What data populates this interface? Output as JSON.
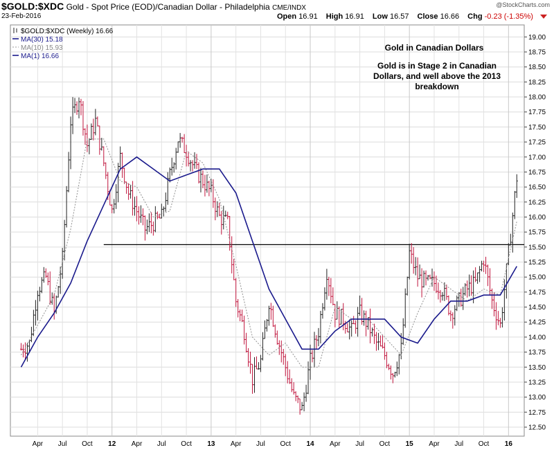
{
  "header": {
    "symbol": "$GOLD:$XDC",
    "description": "Gold - Spot Price (EOD)/Canadian Dollar - Philadelphia",
    "exchange": "CME/INDX",
    "date": "23-Feb-2016",
    "brand": "@StockCharts.com",
    "open_label": "Open",
    "open": "16.91",
    "high_label": "High",
    "high": "16.91",
    "low_label": "Low",
    "low": "16.57",
    "close_label": "Close",
    "close": "16.66",
    "chg_label": "Chg",
    "chg": "-0.23 (-1.35%)"
  },
  "legend": [
    {
      "label": "$GOLD:$XDC (Weekly) 16.66",
      "style": "bars",
      "color": "#222222"
    },
    {
      "label": "MA(30) 15.18",
      "style": "solid",
      "color": "#1a1a8c"
    },
    {
      "label": "MA(10) 15.93",
      "style": "dotted",
      "color": "#999999"
    },
    {
      "label": "MA(1) 16.66",
      "style": "solid",
      "color": "#1a1a8c"
    }
  ],
  "annotation": {
    "line1": "Gold in Canadian Dollars",
    "line2": "Gold is in Stage 2 in Canadian",
    "line3": "Dollars, and well above the 2013",
    "line4": "breakdown"
  },
  "chart_data": {
    "type": "line",
    "title": "Gold in Canadian Dollars",
    "x_axis_labels": [
      "Apr",
      "Jul",
      "Oct",
      "12",
      "Apr",
      "Jul",
      "Oct",
      "13",
      "Apr",
      "Jul",
      "Oct",
      "14",
      "Apr",
      "Jul",
      "Oct",
      "15",
      "Apr",
      "Jul",
      "Oct",
      "16"
    ],
    "year_labels": [
      "12",
      "13",
      "14",
      "15",
      "16"
    ],
    "y_tick_labels": [
      "12.50",
      "12.75",
      "13.00",
      "13.25",
      "13.50",
      "13.75",
      "14.00",
      "14.25",
      "14.50",
      "14.75",
      "15.00",
      "15.25",
      "15.50",
      "15.75",
      "16.00",
      "16.25",
      "16.50",
      "16.75",
      "17.00",
      "17.25",
      "17.50",
      "17.75",
      "18.00",
      "18.25",
      "18.50",
      "18.75",
      "19.00"
    ],
    "ylim": [
      12.35,
      19.2
    ],
    "date_range": [
      "2011-02",
      "2016-02"
    ],
    "grid": true,
    "legend_position": "top-left",
    "colors": {
      "up": "#222222",
      "down": "#c0143c",
      "ma30": "#1a1a8c",
      "ma10": "#999999",
      "level": "#000000"
    },
    "horizontal_level": {
      "y": 15.54,
      "from": "2011-12",
      "to": "2016-02"
    },
    "series": [
      {
        "name": "MA(1)",
        "x": [
          "2011-02",
          "2011-03",
          "2011-04",
          "2011-05",
          "2011-06",
          "2011-07",
          "2011-08",
          "2011-09",
          "2011-10",
          "2011-11",
          "2011-12",
          "2012-01",
          "2012-02",
          "2012-03",
          "2012-04",
          "2012-05",
          "2012-06",
          "2012-07",
          "2012-08",
          "2012-09",
          "2012-10",
          "2012-11",
          "2012-12",
          "2013-01",
          "2013-02",
          "2013-03",
          "2013-04",
          "2013-05",
          "2013-06",
          "2013-07",
          "2013-08",
          "2013-09",
          "2013-10",
          "2013-11",
          "2013-12",
          "2014-01",
          "2014-02",
          "2014-03",
          "2014-04",
          "2014-05",
          "2014-06",
          "2014-07",
          "2014-08",
          "2014-09",
          "2014-10",
          "2014-11",
          "2014-12",
          "2015-01",
          "2015-02",
          "2015-03",
          "2015-04",
          "2015-05",
          "2015-06",
          "2015-07",
          "2015-08",
          "2015-09",
          "2015-10",
          "2015-11",
          "2015-12",
          "2016-01",
          "2016-02"
        ],
        "values": [
          13.8,
          13.9,
          14.8,
          15.0,
          14.4,
          15.3,
          17.6,
          18.0,
          17.2,
          17.6,
          16.9,
          16.1,
          17.0,
          16.4,
          16.1,
          15.8,
          15.9,
          16.0,
          16.7,
          17.3,
          17.1,
          16.8,
          16.6,
          16.4,
          16.0,
          15.9,
          14.6,
          14.1,
          13.3,
          13.6,
          14.6,
          14.0,
          13.5,
          13.0,
          12.8,
          13.6,
          14.1,
          15.1,
          14.4,
          14.3,
          14.1,
          14.4,
          14.2,
          13.9,
          13.7,
          13.4,
          13.8,
          15.4,
          15.0,
          14.9,
          14.9,
          14.8,
          14.4,
          14.6,
          14.8,
          14.9,
          15.3,
          14.6,
          14.2,
          15.4,
          16.66
        ]
      },
      {
        "name": "MA(10)",
        "x": [
          "2011-02",
          "2011-04",
          "2011-06",
          "2011-08",
          "2011-10",
          "2011-12",
          "2012-02",
          "2012-04",
          "2012-06",
          "2012-08",
          "2012-10",
          "2012-12",
          "2013-02",
          "2013-04",
          "2013-06",
          "2013-08",
          "2013-10",
          "2013-12",
          "2014-02",
          "2014-04",
          "2014-06",
          "2014-08",
          "2014-10",
          "2014-12",
          "2015-02",
          "2015-04",
          "2015-06",
          "2015-08",
          "2015-10",
          "2015-12",
          "2016-02"
        ],
        "values": [
          13.7,
          14.2,
          14.7,
          15.8,
          17.3,
          17.3,
          16.6,
          16.5,
          16.0,
          16.1,
          17.1,
          16.9,
          16.3,
          15.2,
          14.0,
          13.7,
          13.9,
          13.5,
          13.5,
          14.5,
          14.3,
          14.3,
          14.0,
          13.7,
          14.4,
          15.0,
          14.8,
          14.6,
          14.8,
          14.7,
          15.93
        ]
      },
      {
        "name": "MA(30)",
        "x": [
          "2011-02",
          "2011-04",
          "2011-06",
          "2011-08",
          "2011-10",
          "2011-12",
          "2012-02",
          "2012-04",
          "2012-06",
          "2012-08",
          "2012-10",
          "2012-12",
          "2013-02",
          "2013-04",
          "2013-06",
          "2013-08",
          "2013-10",
          "2013-12",
          "2014-02",
          "2014-04",
          "2014-06",
          "2014-08",
          "2014-10",
          "2014-12",
          "2015-02",
          "2015-04",
          "2015-06",
          "2015-08",
          "2015-10",
          "2015-12",
          "2016-02"
        ],
        "values": [
          13.5,
          14.0,
          14.4,
          14.9,
          15.6,
          16.2,
          16.8,
          17.0,
          16.8,
          16.6,
          16.7,
          16.8,
          16.8,
          16.4,
          15.6,
          14.8,
          14.3,
          13.8,
          13.8,
          14.1,
          14.3,
          14.3,
          14.3,
          14.0,
          13.9,
          14.3,
          14.6,
          14.6,
          14.7,
          14.7,
          15.18
        ]
      }
    ]
  }
}
